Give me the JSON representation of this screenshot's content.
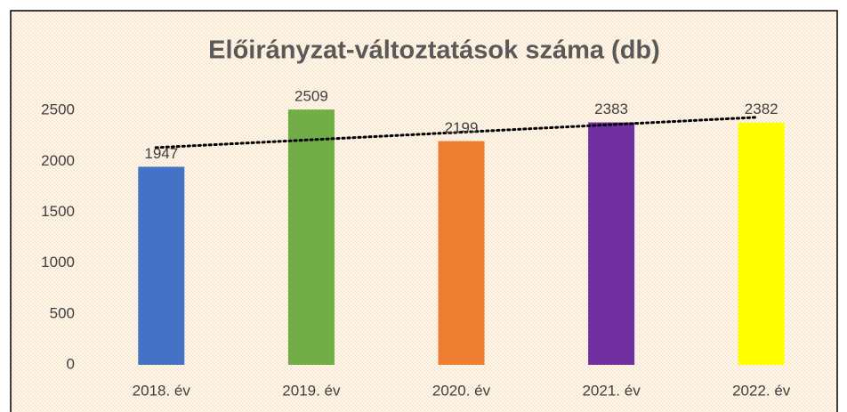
{
  "chart_data": {
    "type": "bar",
    "title": "Előirányzat-változtatások száma (db)",
    "categories": [
      "2018. év",
      "2019. év",
      "2020. év",
      "2021. év",
      "2022. év"
    ],
    "values": [
      1947,
      2509,
      2199,
      2383,
      2382
    ],
    "colors": [
      "#4472c4",
      "#70ad47",
      "#ed7d31",
      "#7030a0",
      "#ffff00"
    ],
    "ylim": [
      0,
      3000
    ],
    "yticks": [
      0,
      500,
      1000,
      1500,
      2000,
      2500
    ],
    "grid": false,
    "trendline": "linear",
    "data_labels": true
  }
}
